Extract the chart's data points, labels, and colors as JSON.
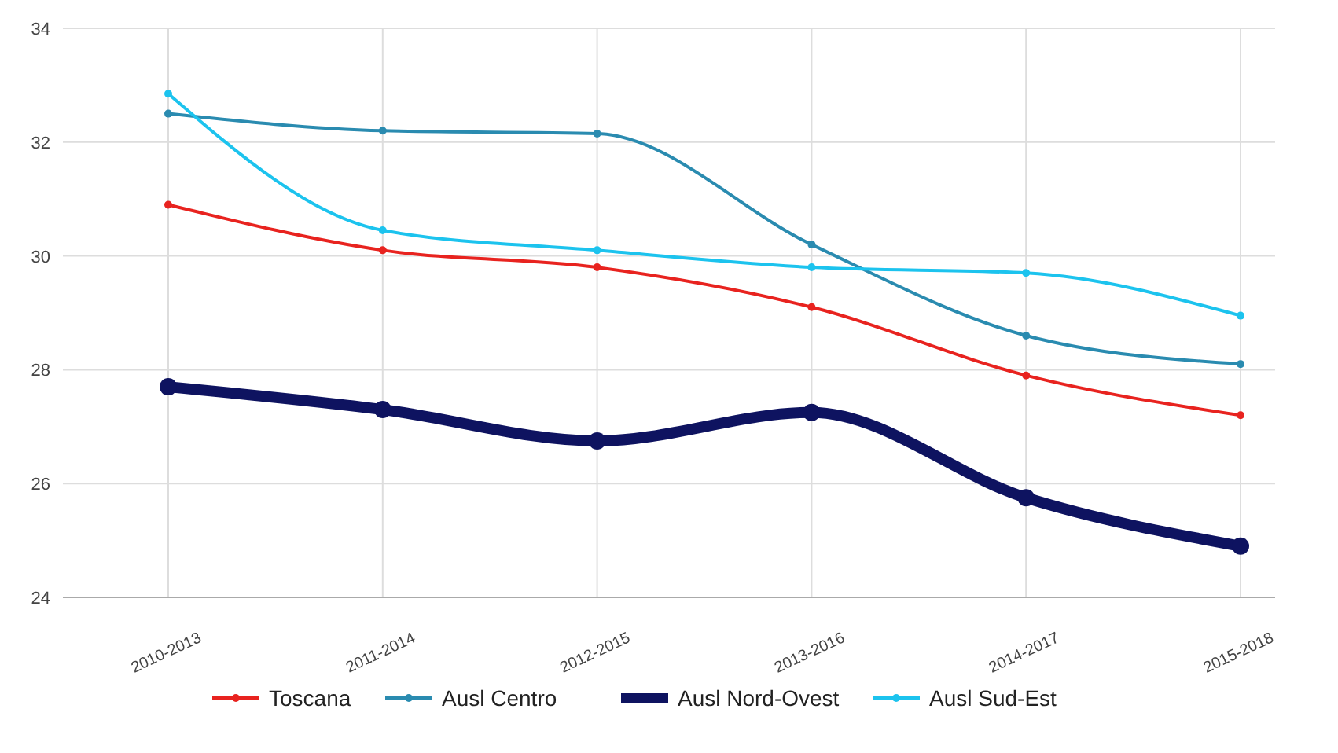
{
  "chart_data": {
    "type": "line",
    "categories": [
      "2010-2013",
      "2011-2014",
      "2012-2015",
      "2013-2016",
      "2014-2017",
      "2015-2018"
    ],
    "series": [
      {
        "name": "Toscana",
        "color": "#e8231f",
        "values": [
          30.9,
          30.1,
          29.8,
          29.1,
          27.9,
          27.2
        ]
      },
      {
        "name": "Ausl Centro",
        "color": "#2a8bb0",
        "values": [
          32.5,
          32.2,
          32.15,
          30.2,
          28.6,
          28.1
        ]
      },
      {
        "name": "Ausl Nord-Ovest",
        "color": "#0e1360",
        "values": [
          27.7,
          27.3,
          26.75,
          27.25,
          25.75,
          24.9
        ]
      },
      {
        "name": "Ausl Sud-Est",
        "color": "#1cc3ee",
        "values": [
          32.85,
          30.45,
          30.1,
          29.8,
          29.7,
          28.95
        ]
      }
    ],
    "ylim": [
      24,
      34
    ],
    "yticks": [
      24,
      26,
      28,
      30,
      32,
      34
    ],
    "grid": true,
    "legend": "bottom",
    "marker": "circle",
    "line_style": "solid"
  }
}
